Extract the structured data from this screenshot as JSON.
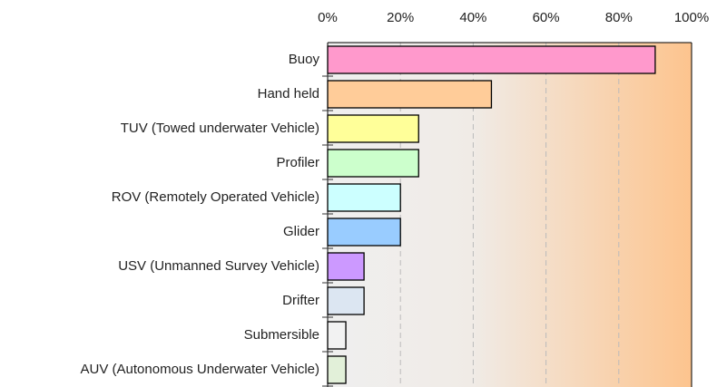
{
  "chart_data": {
    "type": "bar",
    "orientation": "horizontal",
    "categories": [
      "Buoy",
      "Hand held",
      "TUV (Towed underwater Vehicle)",
      "Profiler",
      "ROV (Remotely Operated Vehicle)",
      "Glider",
      "USV (Unmanned Survey Vehicle)",
      "Drifter",
      "Submersible",
      "AUV (Autonomous Underwater Vehicle)"
    ],
    "values": [
      90,
      45,
      25,
      25,
      20,
      20,
      10,
      10,
      5,
      5
    ],
    "colors": [
      "#ff99cc",
      "#ffcc99",
      "#ffff99",
      "#ccffcc",
      "#ccffff",
      "#99ccff",
      "#cc99ff",
      "#dce6f2",
      "#f2f2f2",
      "#e2f0d9"
    ],
    "xlim": [
      0,
      100
    ],
    "xticks": [
      {
        "value": 0,
        "label": "0%"
      },
      {
        "value": 20,
        "label": "20%"
      },
      {
        "value": 40,
        "label": "40%"
      },
      {
        "value": 60,
        "label": "60%"
      },
      {
        "value": 80,
        "label": "80%"
      },
      {
        "value": 100,
        "label": "100%"
      }
    ],
    "grid": true
  }
}
